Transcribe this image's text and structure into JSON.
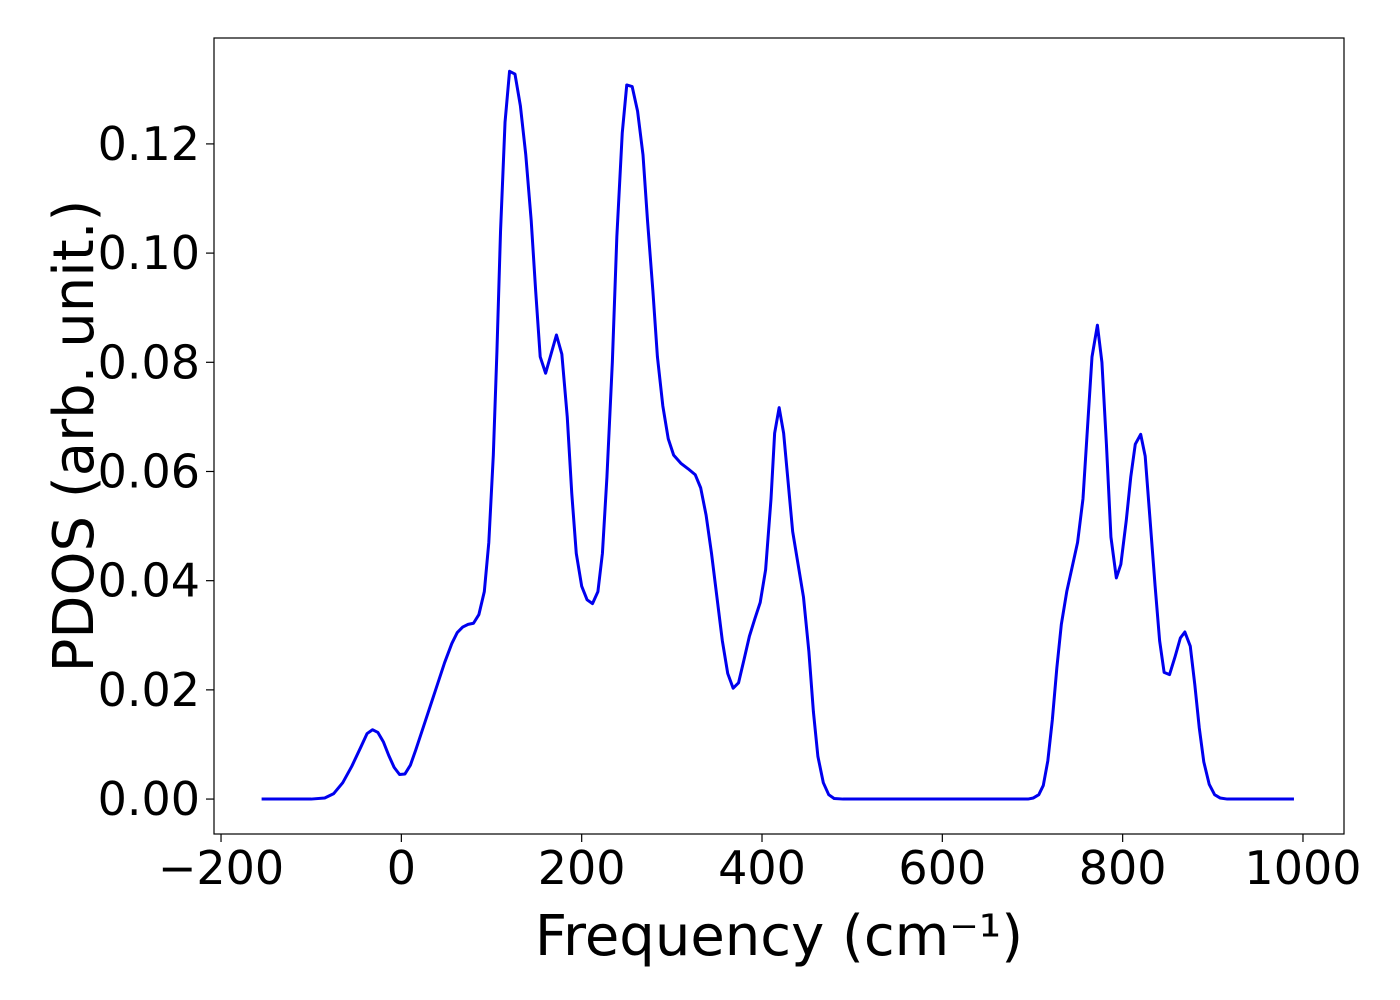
{
  "chart_data": {
    "type": "line",
    "xlabel": "Frequency (cm⁻¹)",
    "ylabel": "PDOS (arb. unit.)",
    "xlim": [
      -207.8,
      1045.5
    ],
    "ylim": [
      -0.0064,
      0.1394
    ],
    "xticks": [
      {
        "value": -200,
        "label": "−200"
      },
      0,
      200,
      400,
      600,
      800,
      1000
    ],
    "yticks": [
      {
        "value": 0,
        "label": "0.00"
      },
      {
        "value": 0.02,
        "label": "0.02"
      },
      {
        "value": 0.04,
        "label": "0.04"
      },
      {
        "value": 0.06,
        "label": "0.06"
      },
      {
        "value": 0.08,
        "label": "0.08"
      },
      {
        "value": 0.1,
        "label": "0.10"
      },
      {
        "value": 0.12,
        "label": "0.12"
      }
    ],
    "grid": false,
    "series": [
      {
        "color": "#0000ee",
        "x": [
          -155,
          -100,
          -85,
          -75,
          -65,
          -55,
          -45,
          -38,
          -32,
          -26,
          -20,
          -14,
          -8,
          -2,
          4,
          10,
          16,
          24,
          32,
          40,
          48,
          56,
          62,
          68,
          74,
          80,
          86,
          92,
          97,
          102,
          106,
          110,
          115,
          120,
          126,
          132,
          138,
          144,
          149,
          154,
          160,
          166,
          172,
          178,
          184,
          189,
          194,
          200,
          206,
          212,
          218,
          223,
          228,
          234,
          239,
          245,
          250,
          256,
          262,
          268,
          273,
          279,
          284,
          290,
          296,
          302,
          310,
          318,
          326,
          332,
          338,
          344,
          350,
          356,
          362,
          368,
          374,
          380,
          386,
          392,
          398,
          404,
          410,
          414,
          419,
          424,
          429,
          434,
          440,
          446,
          452,
          457,
          462,
          468,
          474,
          480,
          490,
          695,
          701,
          707,
          712,
          717,
          722,
          727,
          732,
          738,
          744,
          750,
          756,
          761,
          766,
          772,
          777,
          782,
          787,
          793,
          798,
          804,
          809,
          814,
          820,
          825,
          830,
          836,
          841,
          846,
          852,
          858,
          864,
          869,
          875,
          880,
          885,
          890,
          896,
          902,
          908,
          916,
          990
        ],
        "values": [
          0,
          0,
          0.0002,
          0.001,
          0.003,
          0.006,
          0.0095,
          0.012,
          0.0127,
          0.0122,
          0.0105,
          0.008,
          0.0058,
          0.0045,
          0.0046,
          0.0062,
          0.009,
          0.013,
          0.017,
          0.021,
          0.025,
          0.0285,
          0.0305,
          0.0315,
          0.032,
          0.0322,
          0.0338,
          0.038,
          0.047,
          0.063,
          0.082,
          0.104,
          0.124,
          0.1333,
          0.1328,
          0.127,
          0.118,
          0.106,
          0.093,
          0.081,
          0.078,
          0.0815,
          0.085,
          0.0815,
          0.07,
          0.056,
          0.045,
          0.039,
          0.0365,
          0.0358,
          0.038,
          0.045,
          0.059,
          0.08,
          0.103,
          0.122,
          0.1308,
          0.1305,
          0.126,
          0.118,
          0.106,
          0.093,
          0.081,
          0.072,
          0.066,
          0.063,
          0.0615,
          0.0605,
          0.0594,
          0.057,
          0.052,
          0.045,
          0.037,
          0.029,
          0.023,
          0.0203,
          0.0213,
          0.0255,
          0.0298,
          0.033,
          0.036,
          0.042,
          0.055,
          0.067,
          0.0717,
          0.067,
          0.058,
          0.049,
          0.043,
          0.037,
          0.027,
          0.016,
          0.0078,
          0.003,
          0.0008,
          0.0001,
          0,
          0,
          0.0002,
          0.0008,
          0.0025,
          0.007,
          0.0145,
          0.024,
          0.032,
          0.038,
          0.0425,
          0.047,
          0.055,
          0.068,
          0.081,
          0.0868,
          0.08,
          0.065,
          0.048,
          0.0405,
          0.043,
          0.051,
          0.059,
          0.065,
          0.0668,
          0.0628,
          0.052,
          0.039,
          0.029,
          0.0232,
          0.0228,
          0.026,
          0.0295,
          0.0306,
          0.028,
          0.021,
          0.013,
          0.0068,
          0.0027,
          0.0008,
          0.0002,
          0,
          0
        ]
      }
    ]
  }
}
